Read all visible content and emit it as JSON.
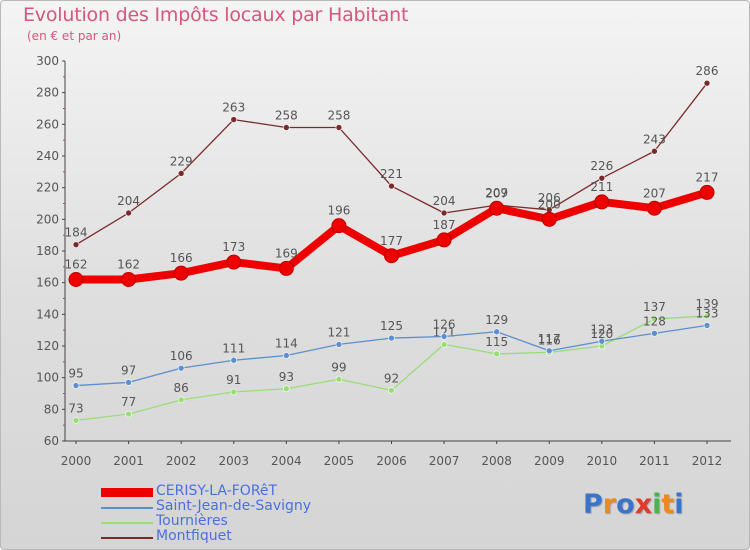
{
  "chart_data": {
    "type": "line",
    "title": "Evolution des Impôts locaux par Habitant",
    "subtitle": "(en € et par an)",
    "categories": [
      "2000",
      "2001",
      "2002",
      "2003",
      "2004",
      "2005",
      "2006",
      "2007",
      "2008",
      "2009",
      "2010",
      "2011",
      "2012"
    ],
    "ylim": [
      60,
      300
    ],
    "yticks": [
      60,
      80,
      100,
      120,
      140,
      160,
      180,
      200,
      220,
      240,
      260,
      280,
      300
    ],
    "grid": false,
    "legend_position": "bottom-left",
    "series": [
      {
        "name": "CERISY-LA-FORêT",
        "color": "#ee0000",
        "values": [
          162,
          162,
          166,
          173,
          169,
          196,
          177,
          187,
          207,
          200,
          211,
          207,
          217
        ]
      },
      {
        "name": "Saint-Jean-de-Savigny",
        "color": "#5b8fcf",
        "values": [
          95,
          97,
          106,
          111,
          114,
          121,
          125,
          126,
          129,
          117,
          123,
          128,
          133
        ]
      },
      {
        "name": "Tournières",
        "color": "#99dd77",
        "values": [
          73,
          77,
          86,
          91,
          93,
          99,
          92,
          121,
          115,
          116,
          120,
          137,
          139
        ]
      },
      {
        "name": "Montfiquet",
        "color": "#7a2a2a",
        "values": [
          184,
          204,
          229,
          263,
          258,
          258,
          221,
          204,
          209,
          206,
          226,
          243,
          286
        ]
      }
    ]
  },
  "colors": {
    "title": "#d4587b",
    "axis_text": "#555555",
    "label_text": "#555555"
  },
  "logo": {
    "text": "Proxiti",
    "letters": [
      "P",
      "r",
      "o",
      "x",
      "i",
      "t",
      "i"
    ],
    "colors": [
      "#3b73c9",
      "#ee8a1c",
      "#3b73c9",
      "#e03a2d",
      "#4bb34b",
      "#ee8a1c",
      "#3b73c9"
    ]
  }
}
